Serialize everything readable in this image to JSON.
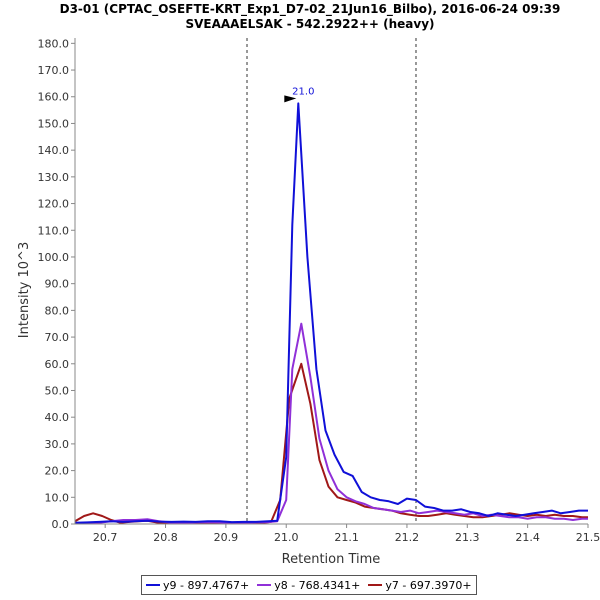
{
  "chart_data": {
    "type": "line",
    "title": "D3-01 (CPTAC_OSEFTE-KRT_Exp1_D7-02_21Jun16_Bilbo), 2016-06-24 09:39",
    "subtitle": "SVEAAAELSAK - 542.2922++ (heavy)",
    "xlabel": "Retention Time",
    "ylabel": "Intensity 10^3",
    "xlim": [
      20.65,
      21.5
    ],
    "ylim": [
      0,
      182
    ],
    "x_ticks": [
      "20.7",
      "20.8",
      "20.9",
      "21.0",
      "21.1",
      "21.2",
      "21.3",
      "21.4",
      "21.5"
    ],
    "y_ticks": [
      "0.0",
      "10.0",
      "20.0",
      "30.0",
      "40.0",
      "50.0",
      "60.0",
      "70.0",
      "80.0",
      "90.0",
      "100.0",
      "110.0",
      "120.0",
      "130.0",
      "140.0",
      "150.0",
      "160.0",
      "170.0",
      "180.0"
    ],
    "vertical_markers": [
      20.935,
      21.215
    ],
    "peak_annotation": {
      "x": 21.02,
      "y": 157.5,
      "label": "21.0"
    },
    "series": [
      {
        "name": "y9 - 897.4767+",
        "color": "#1010d8",
        "x": [
          20.65,
          20.67,
          20.69,
          20.71,
          20.73,
          20.75,
          20.77,
          20.79,
          20.81,
          20.83,
          20.85,
          20.87,
          20.89,
          20.91,
          20.93,
          20.95,
          20.97,
          20.985,
          21.0,
          21.01,
          21.02,
          21.035,
          21.05,
          21.065,
          21.08,
          21.095,
          21.11,
          21.125,
          21.14,
          21.155,
          21.17,
          21.185,
          21.2,
          21.215,
          21.23,
          21.245,
          21.26,
          21.275,
          21.29,
          21.305,
          21.32,
          21.335,
          21.35,
          21.365,
          21.38,
          21.395,
          21.41,
          21.425,
          21.44,
          21.455,
          21.47,
          21.485,
          21.5
        ],
        "y": [
          0.5,
          0.6,
          0.8,
          1.0,
          0.8,
          1.0,
          1.2,
          0.9,
          0.8,
          0.9,
          0.8,
          1.0,
          1.0,
          0.7,
          0.8,
          0.8,
          1.0,
          1.2,
          25.0,
          112.0,
          157.5,
          100.0,
          58.0,
          35.0,
          26.0,
          19.5,
          18.0,
          12.0,
          10.0,
          9.0,
          8.5,
          7.5,
          9.5,
          9.0,
          6.5,
          6.0,
          5.0,
          5.0,
          5.5,
          4.5,
          4.0,
          3.0,
          4.0,
          3.5,
          3.0,
          3.5,
          4.0,
          4.5,
          5.0,
          4.0,
          4.5,
          5.0,
          5.0
        ]
      },
      {
        "name": "y8 - 768.4341+",
        "color": "#9030d8",
        "x": [
          20.65,
          20.67,
          20.69,
          20.71,
          20.73,
          20.75,
          20.77,
          20.79,
          20.81,
          20.83,
          20.85,
          20.87,
          20.89,
          20.91,
          20.93,
          20.95,
          20.97,
          20.985,
          21.0,
          21.01,
          21.025,
          21.04,
          21.055,
          21.07,
          21.085,
          21.1,
          21.115,
          21.13,
          21.145,
          21.16,
          21.175,
          21.19,
          21.205,
          21.22,
          21.235,
          21.25,
          21.265,
          21.28,
          21.295,
          21.31,
          21.325,
          21.34,
          21.355,
          21.37,
          21.385,
          21.4,
          21.415,
          21.43,
          21.445,
          21.46,
          21.475,
          21.49,
          21.5
        ],
        "y": [
          0.3,
          0.4,
          0.5,
          1.0,
          1.5,
          1.5,
          1.8,
          1.0,
          0.5,
          0.5,
          0.6,
          0.7,
          0.6,
          0.5,
          0.5,
          0.6,
          0.7,
          1.0,
          9.0,
          58.0,
          75.0,
          55.0,
          32.0,
          20.0,
          13.0,
          10.0,
          8.5,
          7.5,
          6.0,
          5.5,
          5.0,
          4.5,
          5.0,
          4.0,
          4.5,
          5.0,
          4.5,
          4.0,
          3.5,
          4.0,
          3.0,
          3.5,
          3.0,
          2.5,
          2.5,
          2.0,
          2.5,
          2.5,
          2.0,
          2.0,
          1.5,
          2.0,
          2.0
        ]
      },
      {
        "name": "y7 - 697.3970+",
        "color": "#a01818",
        "x": [
          20.65,
          20.665,
          20.68,
          20.695,
          20.71,
          20.725,
          20.74,
          20.755,
          20.77,
          20.785,
          20.8,
          20.82,
          20.84,
          20.86,
          20.88,
          20.9,
          20.92,
          20.94,
          20.96,
          20.975,
          20.99,
          21.005,
          21.025,
          21.04,
          21.055,
          21.07,
          21.085,
          21.1,
          21.115,
          21.13,
          21.145,
          21.16,
          21.175,
          21.19,
          21.205,
          21.22,
          21.235,
          21.25,
          21.265,
          21.28,
          21.295,
          21.31,
          21.325,
          21.34,
          21.355,
          21.37,
          21.385,
          21.4,
          21.415,
          21.43,
          21.445,
          21.46,
          21.475,
          21.49,
          21.5
        ],
        "y": [
          1.0,
          3.0,
          4.0,
          3.0,
          1.5,
          0.5,
          0.8,
          1.0,
          1.2,
          0.6,
          0.3,
          0.5,
          0.6,
          0.5,
          0.5,
          0.5,
          0.4,
          0.5,
          0.5,
          0.8,
          9.0,
          47.0,
          60.0,
          45.0,
          24.0,
          14.0,
          10.0,
          9.0,
          8.0,
          6.5,
          6.0,
          5.5,
          5.0,
          4.0,
          3.5,
          3.0,
          3.0,
          3.5,
          4.0,
          3.5,
          3.0,
          2.5,
          2.5,
          3.0,
          3.5,
          4.0,
          3.5,
          3.0,
          3.5,
          3.0,
          3.5,
          3.0,
          3.0,
          2.5,
          2.5
        ]
      }
    ]
  }
}
